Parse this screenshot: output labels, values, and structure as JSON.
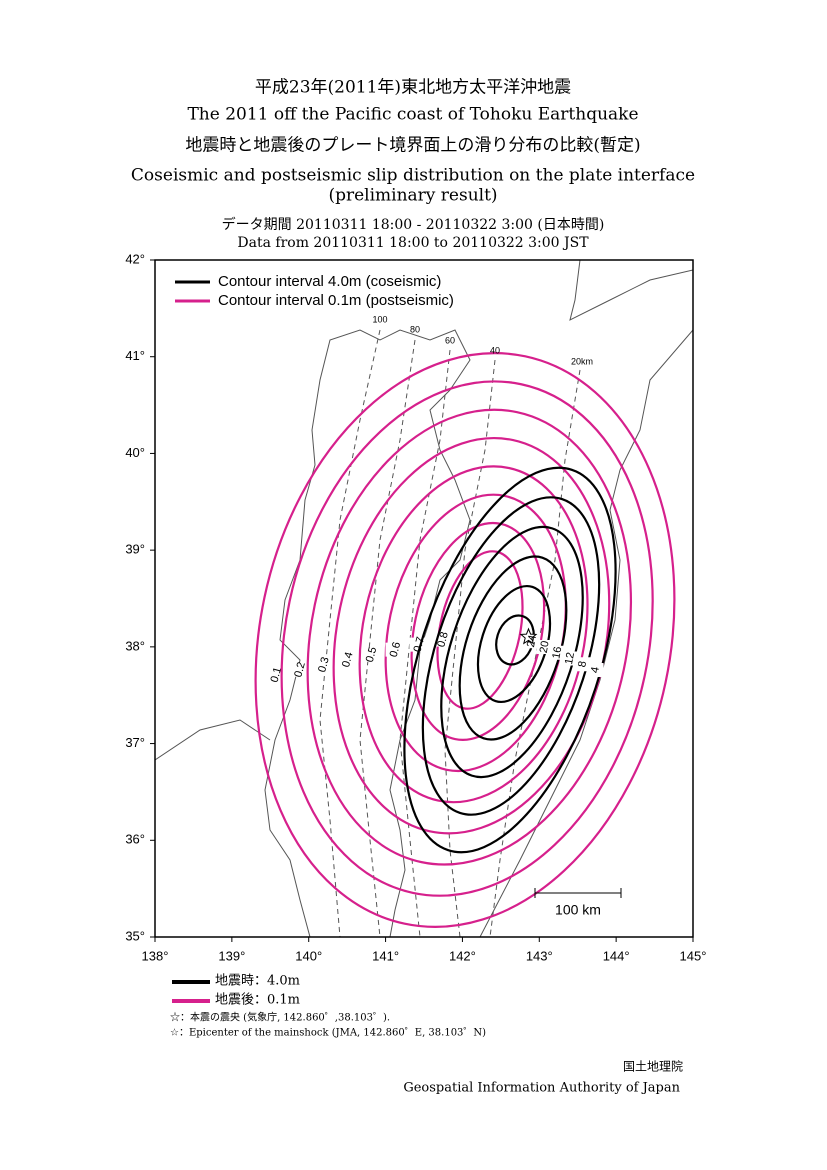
{
  "title_ja": "平成23年(2011年)東北地方太平洋沖地震",
  "title_en": "The 2011 off the Pacific coast of Tohoku Earthquake",
  "subtitle_ja": "地震時と地震後のプレート境界面上の滑り分布の比較(暫定)",
  "subtitle_en_1": "Coseismic and postseismic slip distribution on the plate interface",
  "subtitle_en_2": "(preliminary result)",
  "period_ja": "データ期間 20110311 18:00 - 20110322 3:00 (日本時間)",
  "period_en": "Data from 20110311 18:00 to 20110322 3:00 JST",
  "map": {
    "xlim": [
      138,
      145
    ],
    "ylim": [
      35,
      42
    ],
    "xticks": [
      {
        "value": 138,
        "label": "138°"
      },
      {
        "value": 139,
        "label": "139°"
      },
      {
        "value": 140,
        "label": "140°"
      },
      {
        "value": 141,
        "label": "141°"
      },
      {
        "value": 142,
        "label": "142°"
      },
      {
        "value": 143,
        "label": "143°"
      },
      {
        "value": 144,
        "label": "144°"
      },
      {
        "value": 145,
        "label": "145°"
      }
    ],
    "yticks": [
      {
        "value": 35,
        "label": "35°"
      },
      {
        "value": 36,
        "label": "36°"
      },
      {
        "value": 37,
        "label": "37°"
      },
      {
        "value": 38,
        "label": "38°"
      },
      {
        "value": 39,
        "label": "39°"
      },
      {
        "value": 40,
        "label": "40°"
      },
      {
        "value": 41,
        "label": "41°"
      },
      {
        "value": 42,
        "label": "42°"
      }
    ],
    "legend": [
      "Contour interval 4.0m (coseismic)",
      "Contour interval 0.1m (postseismic)"
    ],
    "coseismic_color": "#000000",
    "postseismic_color": "#d6208c",
    "coseismic_levels": [
      4,
      8,
      12,
      16,
      20,
      24
    ],
    "postseismic_levels": [
      0.1,
      0.2,
      0.3,
      0.4,
      0.5,
      0.6,
      0.7,
      0.8
    ],
    "depth_labels": [
      "100",
      "80",
      "60",
      "40",
      "20km"
    ],
    "scale_bar": "100 km",
    "epicenter": {
      "lon": 142.86,
      "lat": 38.103
    }
  },
  "footer": {
    "legend_coseismic": "地震時：4.0m",
    "legend_postseismic": "地震後：0.1m",
    "note_ja": "☆：本震の震央 (気象庁, 142.860゜,38.103゜).",
    "note_en": "☆：Epicenter of the mainshock (JMA, 142.860゜E, 38.103゜N)",
    "agency_ja": "国土地理院",
    "agency_en": "Geospatial Information Authority of Japan"
  }
}
